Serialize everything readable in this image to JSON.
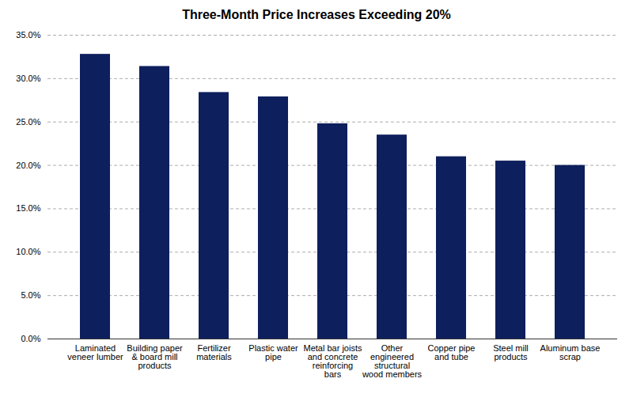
{
  "chart_data": {
    "type": "bar",
    "title": "Three-Month Price Increases Exceeding 20%",
    "categories": [
      "Laminated\nveneer lumber",
      "Building paper\n& board mill\nproducts",
      "Fertilizer\nmaterials",
      "Plastic water\npipe",
      "Metal bar joists\nand concrete\nreinforcing\nbars",
      "Other\nengineered\nstructural\nwood members",
      "Copper pipe\nand tube",
      "Steel mill\nproducts",
      "Aluminum base\nscrap"
    ],
    "values": [
      0.328,
      0.314,
      0.284,
      0.279,
      0.248,
      0.235,
      0.21,
      0.205,
      0.2
    ],
    "color": "#0d1f5c",
    "ylim": [
      0,
      0.35
    ],
    "yticks": [
      {
        "value": 0.0,
        "label": "0.0%"
      },
      {
        "value": 0.05,
        "label": "5.0%"
      },
      {
        "value": 0.1,
        "label": "10.0%"
      },
      {
        "value": 0.15,
        "label": "15.0%"
      },
      {
        "value": 0.2,
        "label": "20.0%"
      },
      {
        "value": 0.25,
        "label": "25.0%"
      },
      {
        "value": 0.3,
        "label": "30.0%"
      },
      {
        "value": 0.35,
        "label": "35.0%"
      }
    ],
    "grid": true
  }
}
